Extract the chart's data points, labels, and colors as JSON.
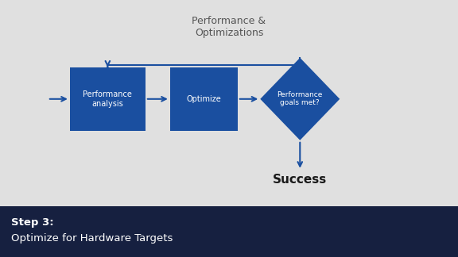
{
  "bg_color": "#e0e0e0",
  "footer_bg": "#162040",
  "footer_text_bold": "Step 3:",
  "footer_text_normal": "Optimize for Hardware Targets",
  "footer_text_color": "#ffffff",
  "title": "Performance &\nOptimizations",
  "title_color": "#555555",
  "box_color": "#1a4fa0",
  "box_text_color": "#ffffff",
  "arrow_color": "#1a4fa0",
  "box1_label": "Performance\nanalysis",
  "box2_label": "Optimize",
  "diamond_label": "Performance\ngoals met?",
  "success_label": "Success",
  "success_color": "#1a1a1a",
  "fig_w": 5.76,
  "fig_h": 3.24,
  "dpi": 100
}
